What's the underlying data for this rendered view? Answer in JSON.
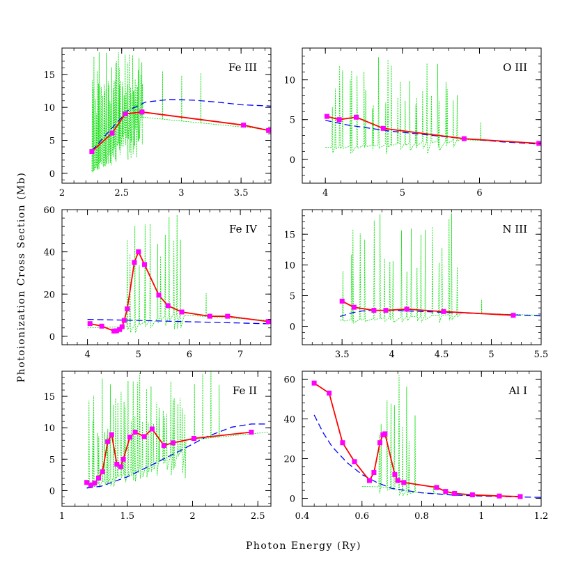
{
  "figure": {
    "ylabel": "Photoionization Cross Section (Mb)",
    "xlabel": "Photon Energy (Ry)"
  },
  "styles": {
    "measured_color": "#ff0000",
    "marker_color": "#ff00ff",
    "dashed_color": "#0000ff",
    "resonance_color": "#00dd00"
  },
  "chart_data": [
    {
      "type": "line",
      "label": "Fe III",
      "xlim": [
        2,
        3.75
      ],
      "ylim": [
        -1.5,
        19
      ],
      "xticks": [
        2,
        2.5,
        3,
        3.5
      ],
      "xticklabels": [
        "2",
        "2.5",
        "3",
        "3.5"
      ],
      "yticks": [
        0,
        5,
        10,
        15
      ],
      "yticklabels": [
        "0",
        "5",
        "10",
        "15"
      ],
      "series": [
        {
          "kind": "averaged",
          "x": [
            2.25,
            2.42,
            2.53,
            2.67,
            3.52,
            3.73
          ],
          "y": [
            3.3,
            6.1,
            9.0,
            9.3,
            7.3,
            6.5
          ]
        },
        {
          "kind": "calculation",
          "x": [
            2.25,
            2.4,
            2.55,
            2.7,
            2.9,
            3.1,
            3.3,
            3.5,
            3.75
          ],
          "y": [
            3.4,
            6.5,
            9.5,
            10.8,
            11.2,
            11.1,
            10.8,
            10.4,
            10.2
          ]
        },
        {
          "kind": "resonances",
          "x": [
            2.25,
            3.75
          ],
          "range": [
            2.25,
            2.68
          ],
          "peak": 19,
          "count": 50,
          "base": [
            0.3,
            9.2
          ],
          "tail": [
            8.5,
            6.6
          ],
          "tail_spikes": 6
        },
        {
          "kind": "markers",
          "x": [
            2.25,
            2.42,
            2.53,
            2.67,
            3.52,
            3.73
          ],
          "y": [
            3.3,
            6.1,
            9.0,
            9.3,
            7.3,
            6.5
          ]
        }
      ]
    },
    {
      "type": "line",
      "label": "O III",
      "xlim": [
        3.7,
        6.8
      ],
      "ylim": [
        -3,
        14
      ],
      "xticks": [
        4,
        5,
        6
      ],
      "xticklabels": [
        "4",
        "5",
        "6"
      ],
      "yticks": [
        0,
        5,
        10
      ],
      "yticklabels": [
        "0",
        "5",
        "10"
      ],
      "series": [
        {
          "kind": "averaged",
          "x": [
            4.02,
            4.18,
            4.4,
            4.75,
            5.8,
            6.77
          ],
          "y": [
            5.4,
            5.0,
            5.3,
            3.9,
            2.6,
            2.0
          ]
        },
        {
          "kind": "calculation",
          "x": [
            4.0,
            4.3,
            4.8,
            5.3,
            5.8,
            6.3,
            6.8
          ],
          "y": [
            4.9,
            4.3,
            3.6,
            3.1,
            2.6,
            2.2,
            1.9
          ]
        },
        {
          "kind": "resonances",
          "x": [
            4.0,
            6.8
          ],
          "range": [
            4.05,
            5.75
          ],
          "peak": 13,
          "count": 30,
          "base": [
            1.5,
            2.4
          ],
          "tail": [
            2.5,
            2.0
          ],
          "tail_spikes": 3
        },
        {
          "kind": "markers",
          "x": [
            4.02,
            4.18,
            4.4,
            4.75,
            5.8,
            6.77
          ],
          "y": [
            5.4,
            5.0,
            5.3,
            3.9,
            2.6,
            2.0
          ]
        }
      ]
    },
    {
      "type": "line",
      "label": "Fe IV",
      "xlim": [
        3.5,
        7.6
      ],
      "ylim": [
        -4,
        60
      ],
      "xticks": [
        4,
        5,
        6,
        7
      ],
      "xticklabels": [
        "4",
        "5",
        "6",
        "7"
      ],
      "yticks": [
        0,
        20,
        40,
        60
      ],
      "yticklabels": [
        "0",
        "20",
        "40",
        "60"
      ],
      "series": [
        {
          "kind": "averaged",
          "x": [
            4.05,
            4.28,
            4.52,
            4.57,
            4.63,
            4.68,
            4.72,
            4.78,
            4.92,
            5.0,
            5.12,
            5.4,
            5.58,
            5.85,
            6.4,
            6.75,
            7.55
          ],
          "y": [
            6.0,
            4.8,
            2.5,
            2.6,
            3.2,
            4.5,
            7.5,
            13.0,
            35.0,
            40.0,
            34.0,
            19.5,
            14.5,
            11.5,
            9.5,
            9.5,
            7.0
          ]
        },
        {
          "kind": "calculation",
          "x": [
            4.0,
            5.0,
            6.0,
            7.0,
            7.6
          ],
          "y": [
            8.0,
            7.5,
            6.9,
            6.3,
            5.9
          ]
        },
        {
          "kind": "resonances",
          "x": [
            4.0,
            7.6
          ],
          "range": [
            4.7,
            5.9
          ],
          "peak": 60,
          "count": 14,
          "base": [
            4.0,
            12.0
          ],
          "tail": [
            10.0,
            7.5
          ],
          "tail_spikes": 3
        },
        {
          "kind": "markers",
          "x": [
            4.05,
            4.28,
            4.52,
            4.57,
            4.63,
            4.68,
            4.72,
            4.78,
            4.92,
            5.0,
            5.12,
            5.4,
            5.58,
            5.85,
            6.4,
            6.75,
            7.55
          ],
          "y": [
            6.0,
            4.8,
            2.5,
            2.6,
            3.2,
            4.5,
            7.5,
            13.0,
            35.0,
            40.0,
            34.0,
            19.5,
            14.5,
            11.5,
            9.5,
            9.5,
            7.0
          ]
        }
      ]
    },
    {
      "type": "line",
      "label": "N III",
      "xlim": [
        3.1,
        5.5
      ],
      "ylim": [
        -3,
        19
      ],
      "xticks": [
        3.5,
        4,
        4.5,
        5,
        5.5
      ],
      "xticklabels": [
        "3.5",
        "4",
        "4.5",
        "5",
        "5.5"
      ],
      "yticks": [
        0,
        5,
        10,
        15
      ],
      "yticklabels": [
        "0",
        "5",
        "10",
        "15"
      ],
      "series": [
        {
          "kind": "averaged",
          "x": [
            3.5,
            3.62,
            3.82,
            3.94,
            4.15,
            4.52,
            5.22
          ],
          "y": [
            4.1,
            3.1,
            2.6,
            2.6,
            2.8,
            2.4,
            1.8
          ]
        },
        {
          "kind": "calculation",
          "x": [
            3.48,
            3.6,
            3.7,
            3.8,
            4.0,
            4.5,
            5.0,
            5.5
          ],
          "y": [
            1.6,
            2.2,
            2.5,
            2.6,
            2.6,
            2.3,
            2.0,
            1.7
          ]
        },
        {
          "kind": "resonances",
          "x": [
            3.48,
            5.5
          ],
          "range": [
            3.5,
            4.7
          ],
          "peak": 19,
          "count": 22,
          "base": [
            1.0,
            2.0
          ],
          "tail": [
            2.2,
            1.8
          ],
          "tail_spikes": 3
        },
        {
          "kind": "markers",
          "x": [
            3.5,
            3.62,
            3.82,
            3.94,
            4.15,
            4.52,
            5.22
          ],
          "y": [
            4.1,
            3.1,
            2.6,
            2.6,
            2.8,
            2.4,
            1.8
          ]
        }
      ]
    },
    {
      "type": "line",
      "label": "Fe II",
      "xlim": [
        1,
        2.6
      ],
      "ylim": [
        -2.5,
        19
      ],
      "xticks": [
        1,
        1.5,
        2,
        2.5
      ],
      "xticklabels": [
        "1",
        "1.5",
        "2",
        "2.5"
      ],
      "yticks": [
        0,
        5,
        10,
        15
      ],
      "yticklabels": [
        "0",
        "5",
        "10",
        "15"
      ],
      "series": [
        {
          "kind": "averaged",
          "x": [
            1.19,
            1.22,
            1.25,
            1.28,
            1.31,
            1.35,
            1.38,
            1.42,
            1.45,
            1.47,
            1.52,
            1.56,
            1.63,
            1.69,
            1.78,
            1.85,
            2.01,
            2.45
          ],
          "y": [
            1.3,
            0.9,
            1.2,
            2.0,
            3.0,
            7.8,
            8.9,
            4.2,
            3.8,
            5.0,
            8.5,
            9.3,
            8.6,
            9.8,
            7.2,
            7.6,
            8.3,
            9.3
          ]
        },
        {
          "kind": "calculation",
          "x": [
            1.19,
            1.3,
            1.5,
            1.7,
            1.9,
            2.1,
            2.3,
            2.45,
            2.58
          ],
          "y": [
            0.4,
            0.7,
            2.2,
            4.2,
            6.3,
            8.5,
            10.1,
            10.6,
            10.6
          ]
        },
        {
          "kind": "resonances",
          "x": [
            1.19,
            2.58
          ],
          "range": [
            1.2,
            1.95
          ],
          "peak": 19,
          "count": 40,
          "base": [
            0.5,
            6.5
          ],
          "tail": [
            8.0,
            9.3
          ],
          "tail_spikes": 8
        },
        {
          "kind": "markers",
          "x": [
            1.19,
            1.22,
            1.25,
            1.28,
            1.31,
            1.35,
            1.38,
            1.42,
            1.45,
            1.47,
            1.52,
            1.56,
            1.63,
            1.69,
            1.78,
            1.85,
            2.01,
            2.45
          ],
          "y": [
            1.3,
            0.9,
            1.2,
            2.0,
            3.0,
            7.8,
            8.9,
            4.2,
            3.8,
            5.0,
            8.5,
            9.3,
            8.6,
            9.8,
            7.2,
            7.6,
            8.3,
            9.3
          ]
        }
      ]
    },
    {
      "type": "line",
      "label": "Al I",
      "xlim": [
        0.4,
        1.2
      ],
      "ylim": [
        -4,
        64
      ],
      "xticks": [
        0.4,
        0.6,
        0.8,
        1,
        1.2
      ],
      "xticklabels": [
        "0.4",
        "0.6",
        "0.8",
        "1",
        "1.2"
      ],
      "yticks": [
        0,
        20,
        40,
        60
      ],
      "yticklabels": [
        "0",
        "20",
        "40",
        "60"
      ],
      "series": [
        {
          "kind": "averaged",
          "x": [
            0.44,
            0.49,
            0.535,
            0.575,
            0.625,
            0.64,
            0.66,
            0.67,
            0.677,
            0.71,
            0.72,
            0.74,
            0.85,
            0.88,
            0.91,
            0.97,
            1.06,
            1.13
          ],
          "y": [
            58,
            53,
            28,
            18.5,
            9,
            13,
            28,
            32,
            32.5,
            12,
            9,
            8,
            5.5,
            3.5,
            2.5,
            1.8,
            1.2,
            0.9
          ]
        },
        {
          "kind": "calculation",
          "x": [
            0.44,
            0.47,
            0.5,
            0.55,
            0.6,
            0.65,
            0.7,
            0.8,
            0.9,
            1.0,
            1.1,
            1.2
          ],
          "y": [
            42,
            33,
            26,
            18,
            12,
            8,
            5,
            2.8,
            1.7,
            1.2,
            0.8,
            0.5
          ]
        },
        {
          "kind": "resonances",
          "x": [
            0.6,
            0.95
          ],
          "range": [
            0.65,
            0.78
          ],
          "peak": 64,
          "count": 10,
          "base": [
            6.0,
            3.0
          ],
          "tail": [
            3.0,
            1.5
          ],
          "tail_spikes": 2
        },
        {
          "kind": "markers",
          "x": [
            0.44,
            0.49,
            0.535,
            0.575,
            0.625,
            0.64,
            0.66,
            0.67,
            0.677,
            0.71,
            0.72,
            0.74,
            0.85,
            0.88,
            0.91,
            0.97,
            1.06,
            1.13
          ],
          "y": [
            58,
            53,
            28,
            18.5,
            9,
            13,
            28,
            32,
            32.5,
            12,
            9,
            8,
            5.5,
            3.5,
            2.5,
            1.8,
            1.2,
            0.9
          ]
        }
      ]
    }
  ]
}
